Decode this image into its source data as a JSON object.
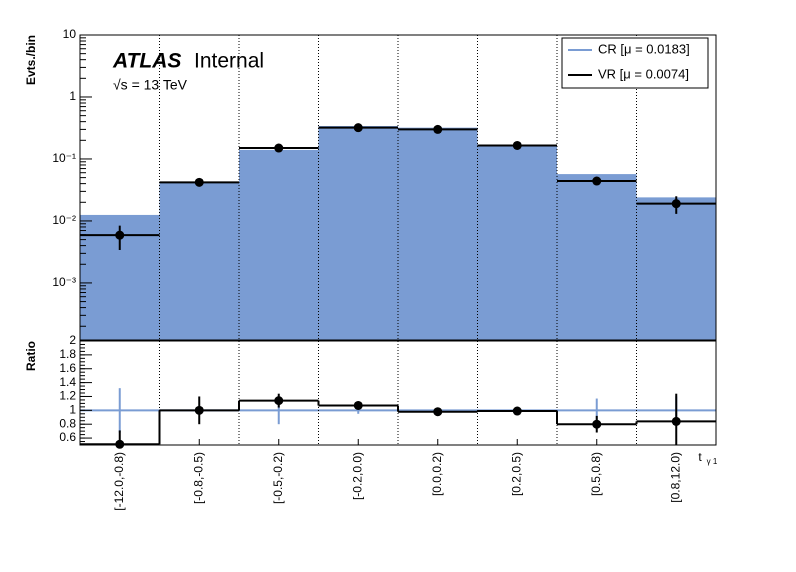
{
  "chart_data": [
    {
      "type": "histogram",
      "ylabel": "Evts./bin",
      "atlas_label": "ATLAS",
      "status_label": "Internal",
      "energy_label": "√s = 13 TeV",
      "yscale": "log",
      "ylim": [
        0.00012,
        10
      ],
      "yticks": [
        {
          "value": 0.001,
          "label": "10⁻³"
        },
        {
          "value": 0.01,
          "label": "10⁻²"
        },
        {
          "value": 0.1,
          "label": "10⁻¹"
        },
        1,
        10
      ],
      "xgrid": true,
      "legend": "top-right",
      "series": [
        {
          "name": "CR [μ = 0.0183]",
          "color": "#7a9cd3",
          "style": "fill",
          "values": [
            0.0125,
            0.041,
            0.14,
            0.34,
            0.32,
            0.168,
            0.057,
            0.024
          ]
        },
        {
          "name": "VR [μ = 0.0074]",
          "color": "#000000",
          "style": "segments",
          "markers": true,
          "values": [
            0.0059,
            0.042,
            0.15,
            0.32,
            0.3,
            0.165,
            0.044,
            0.019
          ],
          "errors": [
            0.0025,
            0.005,
            0.012,
            0.015,
            0.015,
            0.01,
            0.005,
            0.006
          ]
        }
      ]
    },
    {
      "type": "histogram",
      "ylabel": "Ratio",
      "xlabel": "t",
      "xlabel_subscript": "γ 1",
      "categories": [
        "[-12.0,-0.8)",
        "[-0.8,-0.5)",
        "[-0.5,-0.2)",
        "[-0.2,0.0)",
        "[0.0,0.2)",
        "[0.2,0.5)",
        "[0.5,0.8)",
        "[0.8,12.0)"
      ],
      "ylim": [
        0.5,
        2
      ],
      "yticks": [
        0.6,
        0.8,
        1,
        1.2,
        1.4,
        1.6,
        1.8,
        2
      ],
      "xgrid": true,
      "series": [
        {
          "color": "#7a9cd3",
          "style": "segments",
          "values": [
            1,
            1,
            1,
            1,
            1,
            1,
            1,
            1
          ],
          "errors": [
            0.32,
            0.03,
            0.2,
            0.05,
            0.04,
            0.04,
            0.17,
            0.2
          ]
        },
        {
          "color": "#000000",
          "style": "step",
          "markers": true,
          "values": [
            0.51,
            1.0,
            1.14,
            1.07,
            0.98,
            0.99,
            0.8,
            0.84
          ],
          "errors": [
            0.2,
            0.2,
            0.1,
            0.06,
            0.05,
            0.06,
            0.12,
            0.4
          ]
        }
      ]
    }
  ]
}
